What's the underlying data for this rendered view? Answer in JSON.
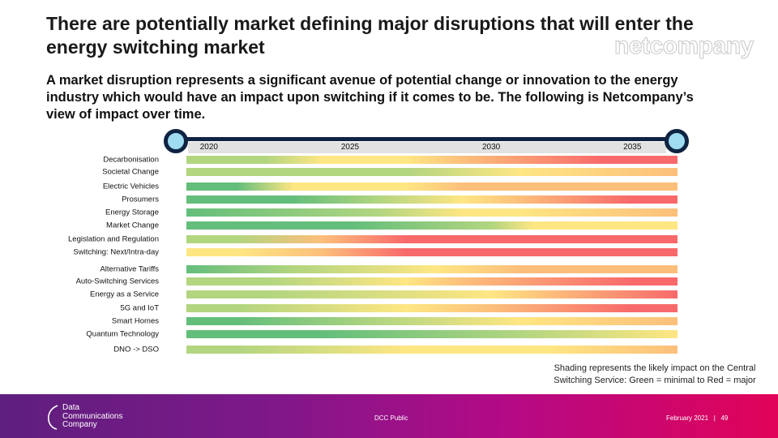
{
  "header": {
    "title": "There are potentially market defining major disruptions that will enter the energy switching market",
    "brand": "netcompany"
  },
  "intro": "A market disruption represents a significant avenue of potential change or innovation to the energy industry which would have an impact upon switching if it comes to be.  The following is Netcompany’s view of impact over time.",
  "chart_data": {
    "type": "heatmap",
    "x_ticks": [
      "2020",
      "2025",
      "2030",
      "2035"
    ],
    "x_range": [
      2019.2,
      2036.6
    ],
    "colors": {
      "G": "#63be7b",
      "LG": "#b2d580",
      "Y": "#fee683",
      "O": "#fcbf7b",
      "R": "#f8696b"
    },
    "rows": [
      {
        "label": "Decarbonisation",
        "stops": [
          [
            2019.2,
            "LG"
          ],
          [
            2022,
            "LG"
          ],
          [
            2024,
            "Y"
          ],
          [
            2027,
            "Y"
          ],
          [
            2029,
            "O"
          ],
          [
            2034,
            "R"
          ],
          [
            2036.6,
            "R"
          ]
        ]
      },
      {
        "label": "Societal Change",
        "stops": [
          [
            2019.2,
            "LG"
          ],
          [
            2027,
            "LG"
          ],
          [
            2031,
            "Y"
          ],
          [
            2036.6,
            "O"
          ]
        ]
      },
      {
        "label": "Electric Vehicles",
        "stops": [
          [
            2019.2,
            "G"
          ],
          [
            2021,
            "G"
          ],
          [
            2023,
            "Y"
          ],
          [
            2027,
            "Y"
          ],
          [
            2029,
            "O"
          ],
          [
            2036.6,
            "O"
          ]
        ]
      },
      {
        "label": "Prosumers",
        "stops": [
          [
            2019.2,
            "G"
          ],
          [
            2023,
            "G"
          ],
          [
            2026,
            "LG"
          ],
          [
            2029,
            "Y"
          ],
          [
            2031,
            "O"
          ],
          [
            2035,
            "R"
          ],
          [
            2036.6,
            "R"
          ]
        ]
      },
      {
        "label": "Energy Storage",
        "stops": [
          [
            2019.2,
            "G"
          ],
          [
            2026,
            "LG"
          ],
          [
            2029,
            "Y"
          ],
          [
            2031,
            "Y"
          ],
          [
            2036.6,
            "O"
          ]
        ]
      },
      {
        "label": "Market Change",
        "stops": [
          [
            2019.2,
            "G"
          ],
          [
            2025,
            "G"
          ],
          [
            2030,
            "LG"
          ],
          [
            2031.5,
            "Y"
          ],
          [
            2036.6,
            "Y"
          ]
        ]
      },
      {
        "label": "Legislation and Regulation",
        "stops": [
          [
            2019.2,
            "LG"
          ],
          [
            2021,
            "LG"
          ],
          [
            2024,
            "O"
          ],
          [
            2027,
            "R"
          ],
          [
            2036.6,
            "R"
          ]
        ]
      },
      {
        "label": "Switching: Next/Intra-day",
        "stops": [
          [
            2019.2,
            "Y"
          ],
          [
            2021,
            "Y"
          ],
          [
            2024,
            "O"
          ],
          [
            2027,
            "R"
          ],
          [
            2036.6,
            "R"
          ]
        ]
      },
      {
        "label": "Alternative Tariffs",
        "stops": [
          [
            2019.2,
            "G"
          ],
          [
            2023,
            "LG"
          ],
          [
            2028,
            "Y"
          ],
          [
            2031,
            "O"
          ],
          [
            2036.6,
            "O"
          ]
        ]
      },
      {
        "label": "Auto-Switching Services",
        "stops": [
          [
            2019.2,
            "LG"
          ],
          [
            2022,
            "LG"
          ],
          [
            2027,
            "Y"
          ],
          [
            2029,
            "O"
          ],
          [
            2035,
            "R"
          ],
          [
            2036.6,
            "R"
          ]
        ]
      },
      {
        "label": "Energy as a Service",
        "stops": [
          [
            2019.2,
            "LG"
          ],
          [
            2022,
            "LG"
          ],
          [
            2030,
            "Y"
          ],
          [
            2032,
            "O"
          ],
          [
            2036.6,
            "R"
          ]
        ]
      },
      {
        "label": "5G and IoT",
        "stops": [
          [
            2019.2,
            "LG"
          ],
          [
            2021,
            "LG"
          ],
          [
            2027,
            "Y"
          ],
          [
            2030,
            "O"
          ],
          [
            2035,
            "R"
          ],
          [
            2036.6,
            "R"
          ]
        ]
      },
      {
        "label": "Smart Homes",
        "stops": [
          [
            2019.2,
            "G"
          ],
          [
            2021,
            "G"
          ],
          [
            2026,
            "LG"
          ],
          [
            2031,
            "Y"
          ],
          [
            2036.6,
            "O"
          ]
        ]
      },
      {
        "label": "Quantum Technology",
        "stops": [
          [
            2019.2,
            "G"
          ],
          [
            2024,
            "G"
          ],
          [
            2031,
            "LG"
          ],
          [
            2036.6,
            "Y"
          ]
        ]
      },
      {
        "label": "DNO -> DSO",
        "stops": [
          [
            2019.2,
            "LG"
          ],
          [
            2021,
            "LG"
          ],
          [
            2027,
            "Y"
          ],
          [
            2032,
            "Y"
          ],
          [
            2036.6,
            "O"
          ]
        ]
      }
    ],
    "legend_note": "Shading represents the likely impact on the Central Switching Service: Green = minimal to Red = major"
  },
  "footer": {
    "logo_lines": [
      "Data",
      "Communications",
      "Company"
    ],
    "classification": "DCC Public",
    "date": "February 2021",
    "separator": "|",
    "page": "49"
  }
}
